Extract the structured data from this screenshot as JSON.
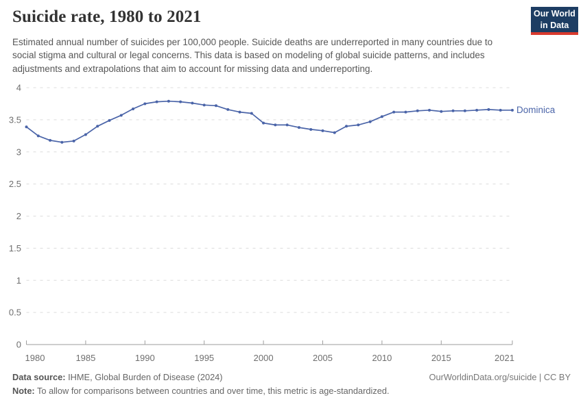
{
  "header": {
    "title": "Suicide rate, 1980 to 2021",
    "subtitle": "Estimated annual number of suicides per 100,000 people. Suicide deaths are underreported in many countries due to social stigma and cultural or legal concerns. This data is based on modeling of global suicide patterns, and includes adjustments and extrapolations that aim to account for missing data and underreporting.",
    "logo": {
      "line1": "Our World",
      "line2": "in Data",
      "bg_color": "#1d3d63",
      "stripe_color": "#d93a2e"
    }
  },
  "chart_data": {
    "type": "line",
    "title": "Suicide rate, 1980 to 2021",
    "xlabel": "",
    "ylabel": "",
    "xlim": [
      1980,
      2021
    ],
    "ylim": [
      0,
      4
    ],
    "grid": "horizontal-dashed",
    "legend_position": "end-of-line",
    "x_ticks": [
      1980,
      1985,
      1990,
      1995,
      2000,
      2005,
      2010,
      2015,
      2021
    ],
    "y_ticks": [
      0,
      0.5,
      1,
      1.5,
      2,
      2.5,
      3,
      3.5,
      4
    ],
    "x": [
      1980,
      1981,
      1982,
      1983,
      1984,
      1985,
      1986,
      1987,
      1988,
      1989,
      1990,
      1991,
      1992,
      1993,
      1994,
      1995,
      1996,
      1997,
      1998,
      1999,
      2000,
      2001,
      2002,
      2003,
      2004,
      2005,
      2006,
      2007,
      2008,
      2009,
      2010,
      2011,
      2012,
      2013,
      2014,
      2015,
      2016,
      2017,
      2018,
      2019,
      2020,
      2021
    ],
    "series": [
      {
        "name": "Dominica",
        "color": "#4a64a8",
        "values": [
          3.39,
          3.25,
          3.18,
          3.15,
          3.17,
          3.27,
          3.4,
          3.49,
          3.57,
          3.67,
          3.75,
          3.78,
          3.79,
          3.78,
          3.76,
          3.73,
          3.72,
          3.66,
          3.62,
          3.6,
          3.45,
          3.42,
          3.42,
          3.38,
          3.35,
          3.33,
          3.3,
          3.4,
          3.42,
          3.47,
          3.55,
          3.62,
          3.62,
          3.64,
          3.65,
          3.63,
          3.64,
          3.64,
          3.65,
          3.66,
          3.65,
          3.65
        ]
      }
    ],
    "axis_color": "#9e9e9e",
    "grid_color": "#dcdcdc",
    "tick_label_color": "#6e6e6e"
  },
  "footer": {
    "source_label": "Data source:",
    "source_text": " IHME, Global Burden of Disease (2024)",
    "link": "OurWorldinData.org/suicide | CC BY",
    "note_label": "Note:",
    "note_text": " To allow for comparisons between countries and over time, this metric is age-standardized."
  }
}
